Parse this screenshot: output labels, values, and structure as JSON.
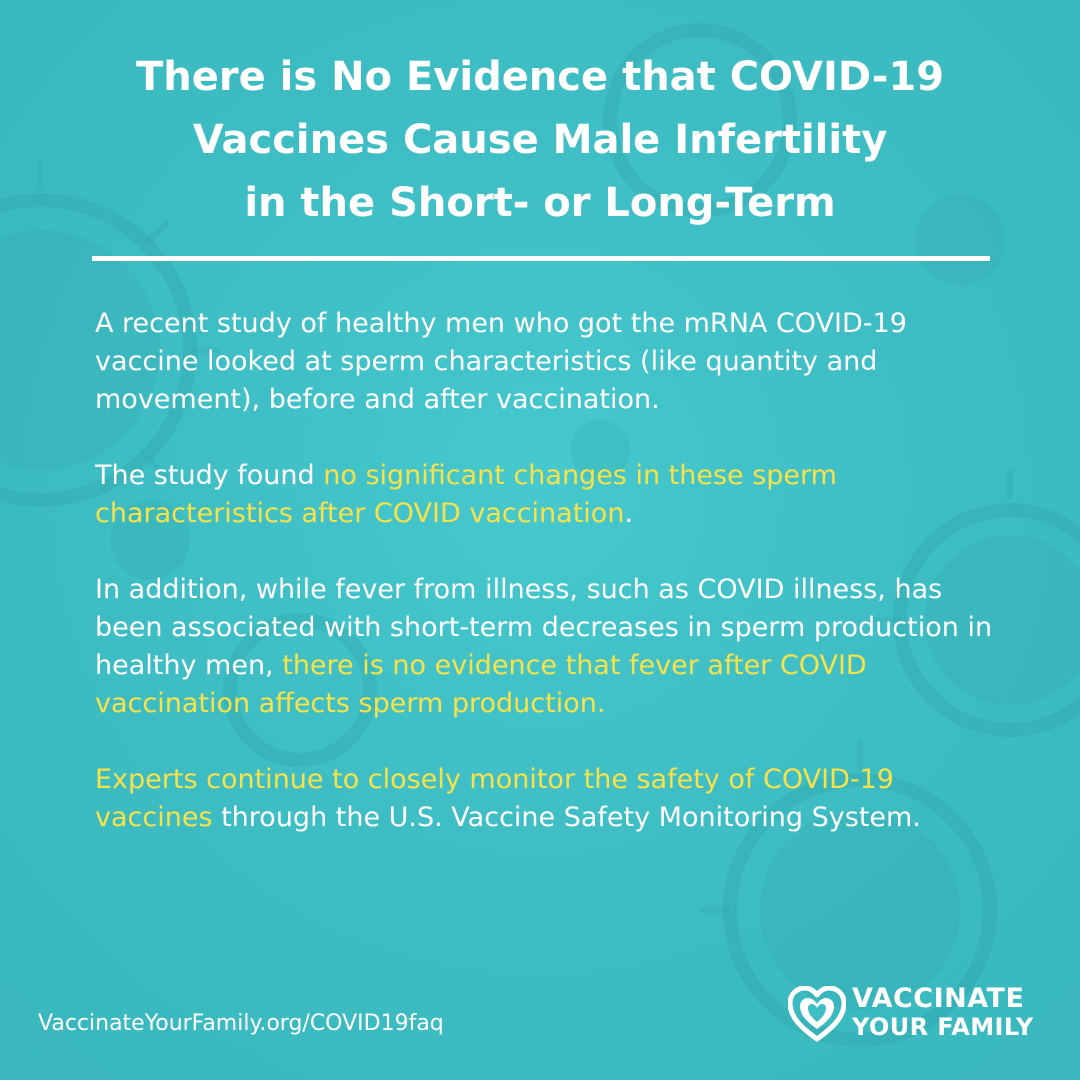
{
  "headline": {
    "lines": [
      "There is No Evidence that COVID-19",
      "Vaccines Cause Male Infertility",
      "in the Short- or Long-Term"
    ]
  },
  "body": {
    "paragraph1": "A recent study of healthy men who got the mRNA COVID-19 vaccine looked at sperm characteristics (like quantity and movement), before and after vaccination.",
    "paragraph2": {
      "lead": "The study found ",
      "highlight": "no significant changes in these sperm characteristics after COVID vaccination",
      "tail": "."
    },
    "paragraph3": {
      "lead": "In addition, while fever from illness, such as COVID illness, has been associated with short-term decreases in sperm production in healthy men, ",
      "highlight": "there is no evidence that fever after COVID vaccination affects sperm production."
    },
    "paragraph4": {
      "highlight": "Experts continue to closely monitor the safety of COVID-19 vaccines",
      "tail": " through the U.S. Vaccine Safety Monitoring System."
    }
  },
  "footer": {
    "url": "VaccinateYourFamily.org/COVID19faq",
    "logo_line1": "VACCINATE",
    "logo_line2": "YOUR FAMILY",
    "logo_icon": "heart-icon"
  },
  "colors": {
    "background": "#3fc0c6",
    "text": "#ffffff",
    "highlight": "#f7e24a"
  }
}
